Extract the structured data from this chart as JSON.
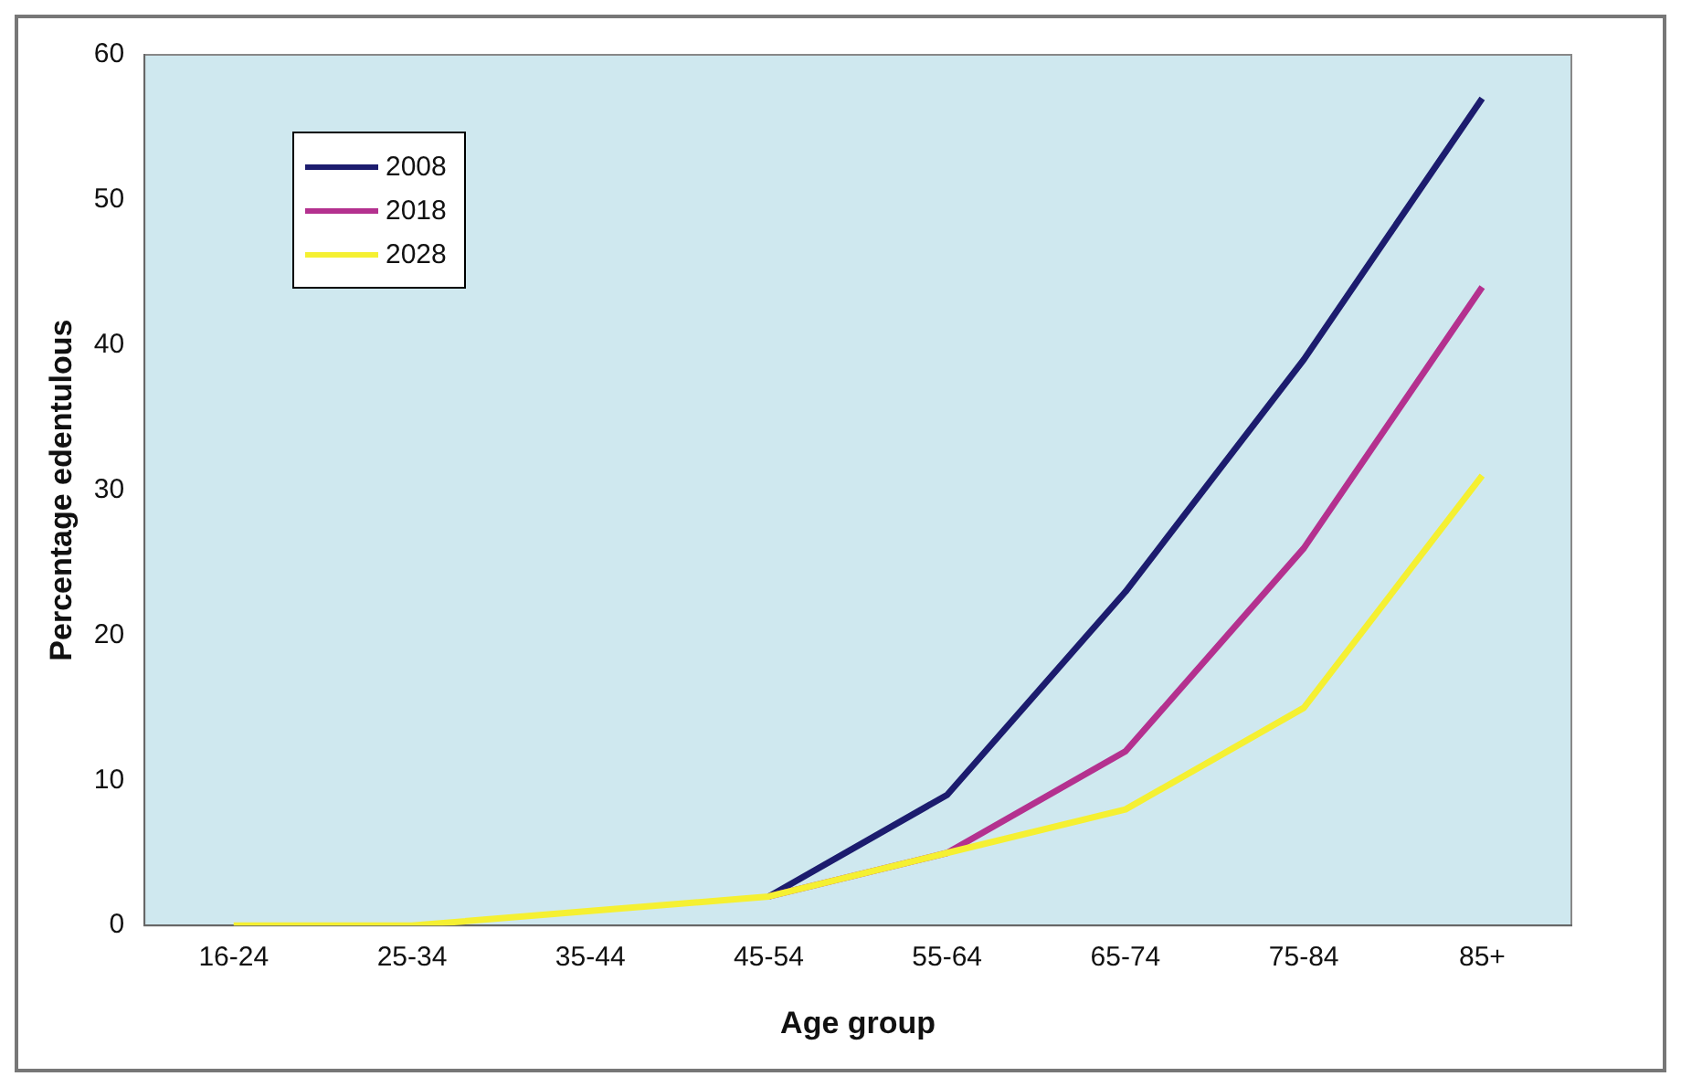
{
  "chart_data": {
    "type": "line",
    "xlabel": "Age group",
    "ylabel": "Percentage edentulous",
    "categories": [
      "16-24",
      "25-34",
      "35-44",
      "45-54",
      "55-64",
      "65-74",
      "75-84",
      "85+"
    ],
    "series": [
      {
        "name": "2008",
        "color": "#1c1c6e",
        "values": [
          null,
          null,
          null,
          2,
          9,
          23,
          39,
          57
        ]
      },
      {
        "name": "2018",
        "color": "#b4318f",
        "values": [
          null,
          null,
          null,
          2,
          5,
          12,
          26,
          44
        ]
      },
      {
        "name": "2028",
        "color": "#f5f032",
        "values": [
          0,
          0,
          1,
          2,
          5,
          8,
          15,
          31
        ]
      }
    ],
    "ylim": [
      0,
      60
    ],
    "yticks": [
      0,
      10,
      20,
      30,
      40,
      50,
      60
    ],
    "grid": false,
    "legend": "top left",
    "marker": "none",
    "line_style": "solid"
  }
}
